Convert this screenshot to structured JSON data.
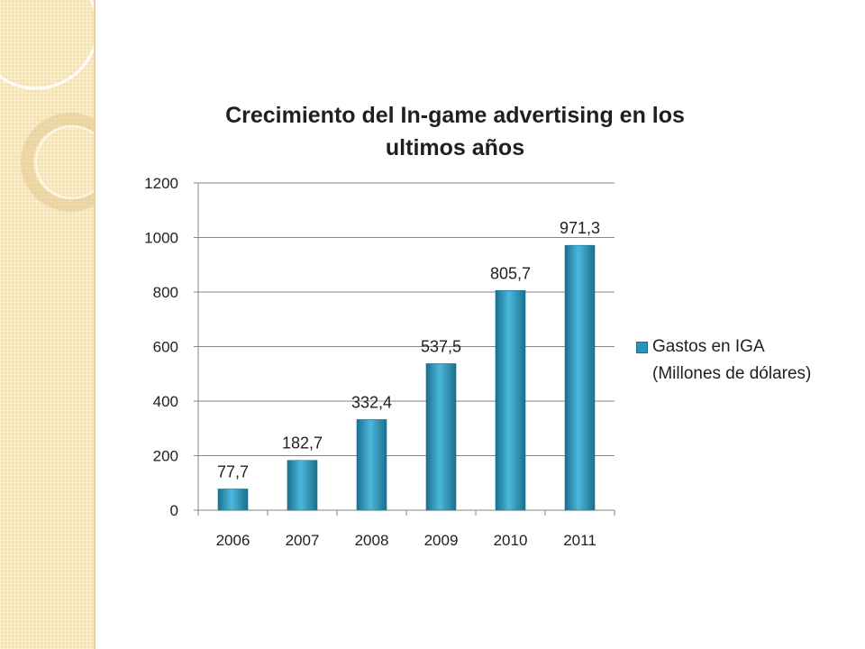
{
  "chart_data": {
    "type": "bar",
    "title_lines": [
      "Crecimiento del In-game advertising en los",
      "ultimos años"
    ],
    "categories": [
      "2006",
      "2007",
      "2008",
      "2009",
      "2010",
      "2011"
    ],
    "series": [
      {
        "name_lines": [
          "Gastos en IGA",
          "(Millones de dólares)"
        ],
        "values": [
          77.7,
          182.7,
          332.4,
          537.5,
          805.7,
          971.3
        ],
        "data_labels": [
          "77,7",
          "182,7",
          "332,4",
          "537,5",
          "805,7",
          "971,3"
        ]
      }
    ],
    "yticks": [
      "0",
      "200",
      "400",
      "600",
      "800",
      "1000",
      "1200"
    ],
    "ylim": [
      0,
      1200
    ],
    "grid": true,
    "legend_position": "right",
    "colors": {
      "bar": "#2a93b8",
      "bar_highlight": "#4bb8dc",
      "bar_edge": "#1b6f8e",
      "grid": "#868686"
    }
  }
}
